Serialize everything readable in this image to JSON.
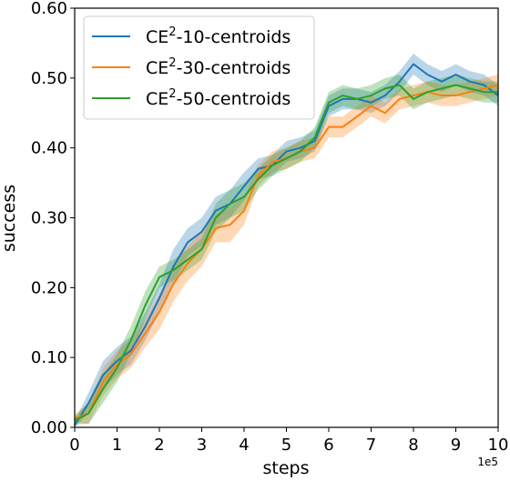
{
  "chart_data": {
    "type": "line",
    "xlabel": "steps",
    "ylabel": "success",
    "x_offset_label": "1e5",
    "xlim": [
      0,
      10
    ],
    "ylim": [
      0,
      0.6
    ],
    "xticks": [
      0,
      1,
      2,
      3,
      4,
      5,
      6,
      7,
      8,
      9,
      10
    ],
    "xtick_labels": [
      "0",
      "1",
      "2",
      "3",
      "4",
      "5",
      "6",
      "7",
      "8",
      "9",
      "10"
    ],
    "yticks": [
      0,
      0.1,
      0.2,
      0.3,
      0.4,
      0.5,
      0.6
    ],
    "ytick_labels": [
      "0.00",
      "0.10",
      "0.20",
      "0.30",
      "0.40",
      "0.50",
      "0.60"
    ],
    "grid": false,
    "legend_position": "top-left",
    "series": [
      {
        "name_base": "CE",
        "name_sup": "2",
        "name_rest": "-10-centroids",
        "color": "#1f77b4",
        "x": [
          0,
          0.33,
          0.67,
          1.0,
          1.33,
          1.67,
          2.0,
          2.33,
          2.67,
          3.0,
          3.33,
          3.67,
          4.0,
          4.33,
          4.67,
          5.0,
          5.33,
          5.67,
          6.0,
          6.33,
          6.67,
          7.0,
          7.33,
          7.67,
          8.0,
          8.33,
          8.67,
          9.0,
          9.33,
          9.67,
          10.0
        ],
        "y": [
          0.003,
          0.035,
          0.075,
          0.095,
          0.11,
          0.145,
          0.185,
          0.23,
          0.265,
          0.28,
          0.31,
          0.32,
          0.345,
          0.37,
          0.375,
          0.395,
          0.4,
          0.41,
          0.46,
          0.47,
          0.47,
          0.465,
          0.475,
          0.495,
          0.52,
          0.505,
          0.495,
          0.505,
          0.495,
          0.49,
          0.475
        ],
        "band": [
          0.006,
          0.015,
          0.02,
          0.02,
          0.02,
          0.02,
          0.02,
          0.025,
          0.02,
          0.02,
          0.02,
          0.02,
          0.02,
          0.015,
          0.015,
          0.015,
          0.015,
          0.015,
          0.015,
          0.015,
          0.015,
          0.015,
          0.015,
          0.015,
          0.015,
          0.015,
          0.015,
          0.015,
          0.015,
          0.015,
          0.015
        ]
      },
      {
        "name_base": "CE",
        "name_sup": "2",
        "name_rest": "-30-centroids",
        "color": "#ff7f0e",
        "x": [
          0,
          0.33,
          0.67,
          1.0,
          1.33,
          1.67,
          2.0,
          2.33,
          2.67,
          3.0,
          3.33,
          3.67,
          4.0,
          4.33,
          4.67,
          5.0,
          5.33,
          5.67,
          6.0,
          6.33,
          6.67,
          7.0,
          7.33,
          7.67,
          8.0,
          8.33,
          8.67,
          9.0,
          9.33,
          9.67,
          10.0
        ],
        "y": [
          0.013,
          0.02,
          0.065,
          0.09,
          0.105,
          0.135,
          0.165,
          0.205,
          0.235,
          0.255,
          0.285,
          0.29,
          0.31,
          0.36,
          0.38,
          0.385,
          0.395,
          0.4,
          0.43,
          0.43,
          0.445,
          0.46,
          0.45,
          0.47,
          0.475,
          0.48,
          0.475,
          0.475,
          0.48,
          0.485,
          0.49
        ],
        "band": [
          0.006,
          0.015,
          0.02,
          0.02,
          0.02,
          0.02,
          0.025,
          0.025,
          0.025,
          0.025,
          0.02,
          0.025,
          0.02,
          0.015,
          0.015,
          0.015,
          0.015,
          0.015,
          0.015,
          0.015,
          0.015,
          0.015,
          0.015,
          0.015,
          0.015,
          0.015,
          0.015,
          0.015,
          0.015,
          0.015,
          0.015
        ]
      },
      {
        "name_base": "CE",
        "name_sup": "2",
        "name_rest": "-50-centroids",
        "color": "#2ca02c",
        "x": [
          0,
          0.33,
          0.67,
          1.0,
          1.33,
          1.67,
          2.0,
          2.33,
          2.67,
          3.0,
          3.33,
          3.67,
          4.0,
          4.33,
          4.67,
          5.0,
          5.33,
          5.67,
          6.0,
          6.33,
          6.67,
          7.0,
          7.33,
          7.67,
          8.0,
          8.33,
          8.67,
          9.0,
          9.33,
          9.67,
          10.0
        ],
        "y": [
          0.01,
          0.02,
          0.055,
          0.085,
          0.125,
          0.175,
          0.215,
          0.225,
          0.24,
          0.255,
          0.3,
          0.32,
          0.33,
          0.355,
          0.375,
          0.385,
          0.395,
          0.415,
          0.465,
          0.475,
          0.47,
          0.475,
          0.485,
          0.49,
          0.47,
          0.48,
          0.485,
          0.49,
          0.485,
          0.48,
          0.48
        ],
        "band": [
          0.006,
          0.015,
          0.02,
          0.02,
          0.02,
          0.02,
          0.015,
          0.015,
          0.015,
          0.015,
          0.02,
          0.02,
          0.02,
          0.015,
          0.015,
          0.015,
          0.015,
          0.015,
          0.015,
          0.015,
          0.015,
          0.015,
          0.015,
          0.015,
          0.015,
          0.015,
          0.015,
          0.015,
          0.015,
          0.015,
          0.015
        ]
      }
    ]
  }
}
